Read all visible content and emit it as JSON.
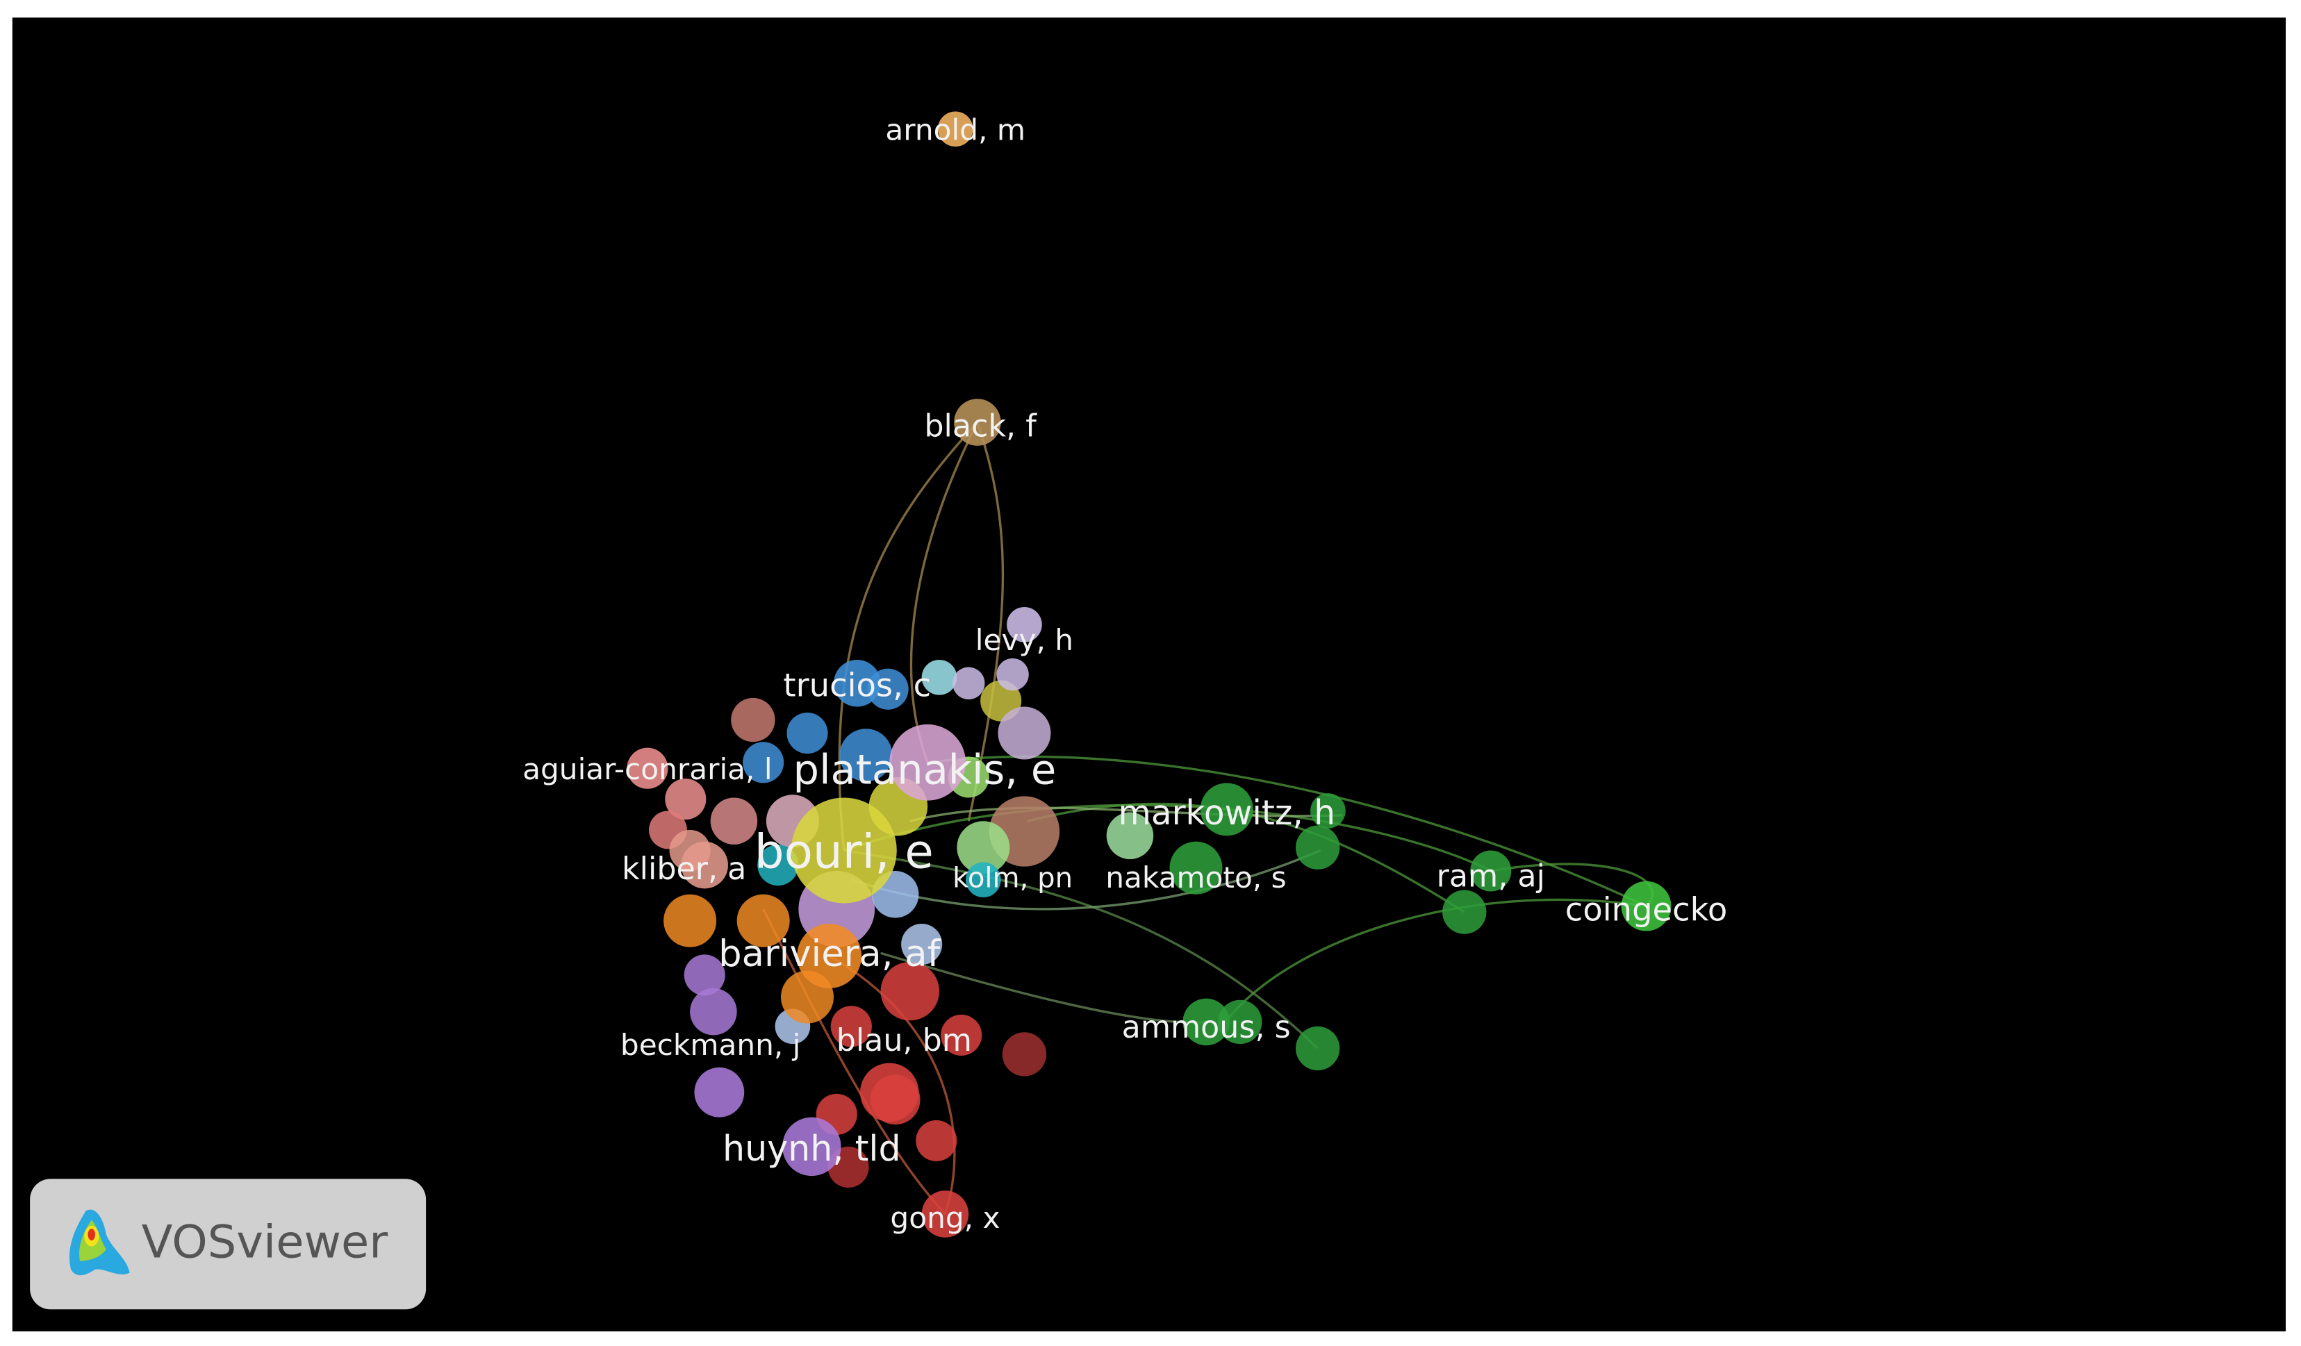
{
  "nodes": [
    {
      "label": "arnold, m"
    },
    {
      "label": "black, f"
    },
    {
      "label": "levy, h"
    },
    {
      "label": "trucios, c"
    },
    {
      "label": "aguiar-conraria, l"
    },
    {
      "label": "platanakis, e"
    },
    {
      "label": "markowitz, h"
    },
    {
      "label": "bouri, e"
    },
    {
      "label": "kliber, a"
    },
    {
      "label": "kolm, pn"
    },
    {
      "label": "nakamoto, s"
    },
    {
      "label": "ram, aj"
    },
    {
      "label": "coingecko"
    },
    {
      "label": "bariviera, af"
    },
    {
      "label": "ammous, s"
    },
    {
      "label": "beckmann, j"
    },
    {
      "label": "blau, bm"
    },
    {
      "label": "huynh, tld"
    },
    {
      "label": "gong, x"
    }
  ],
  "logo": {
    "text": "VOSviewer"
  }
}
